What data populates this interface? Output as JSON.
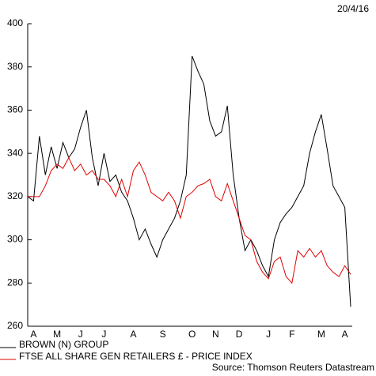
{
  "chart_data": {
    "type": "line",
    "date_label": "20/4/16",
    "source": "Source: Thomson Reuters Datastream",
    "categories": [
      null,
      "A",
      null,
      null,
      null,
      "M",
      null,
      null,
      null,
      "J",
      null,
      null,
      null,
      "J",
      null,
      null,
      null,
      null,
      "A",
      null,
      null,
      null,
      null,
      "S",
      null,
      null,
      null,
      null,
      "O",
      null,
      null,
      null,
      "N",
      null,
      null,
      null,
      "D",
      null,
      null,
      null,
      null,
      "J",
      null,
      null,
      null,
      "F",
      null,
      null,
      null,
      null,
      "M",
      null,
      null,
      null,
      "A",
      null
    ],
    "series": [
      {
        "name": "BROWN (N) GROUP",
        "color": "#000000",
        "values": [
          320,
          318,
          348,
          330,
          343,
          333,
          345,
          338,
          342,
          352,
          360,
          338,
          325,
          340,
          327,
          330,
          322,
          318,
          310,
          300,
          305,
          298,
          292,
          300,
          305,
          310,
          318,
          330,
          385,
          378,
          372,
          355,
          348,
          350,
          362,
          330,
          310,
          295,
          300,
          295,
          288,
          283,
          300,
          308,
          312,
          315,
          320,
          325,
          340,
          350,
          358,
          342,
          325,
          320,
          315,
          269
        ]
      },
      {
        "name": "FTSE ALL SHARE GEN RETAILERS £ - PRICE INDEX",
        "color": "#e00000",
        "values": [
          320,
          320,
          320,
          325,
          332,
          335,
          333,
          338,
          332,
          335,
          330,
          332,
          328,
          328,
          325,
          320,
          328,
          320,
          332,
          336,
          330,
          322,
          320,
          318,
          322,
          318,
          310,
          320,
          322,
          325,
          326,
          328,
          320,
          318,
          326,
          318,
          310,
          302,
          300,
          290,
          285,
          282,
          290,
          292,
          283,
          280,
          295,
          292,
          296,
          292,
          295,
          288,
          285,
          283,
          288,
          284
        ]
      }
    ],
    "ylim": [
      260,
      400
    ],
    "yticks": [
      260,
      280,
      300,
      320,
      340,
      360,
      380,
      400
    ]
  }
}
